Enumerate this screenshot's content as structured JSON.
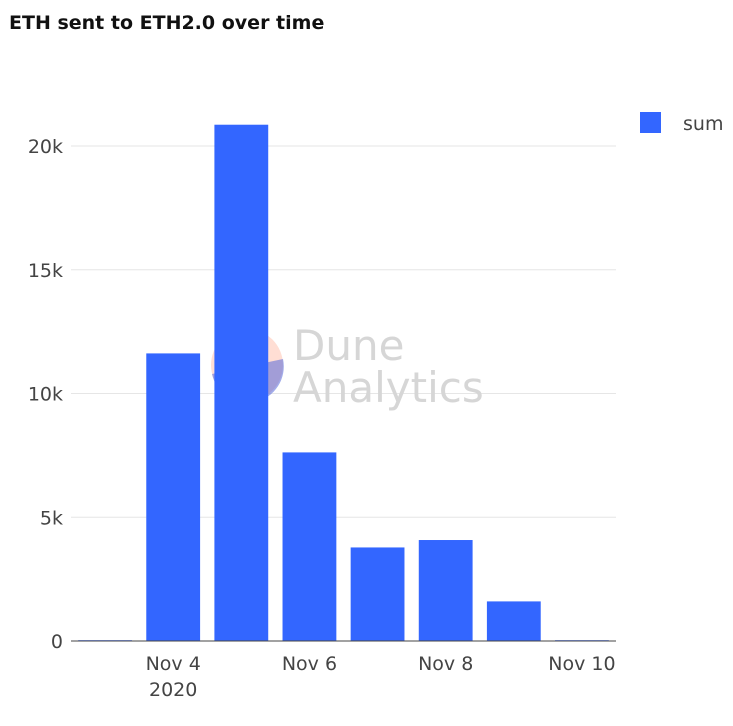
{
  "title": "ETH sent to ETH2.0 over time",
  "watermark": {
    "line1": "Dune",
    "line2": "Analytics"
  },
  "colors": {
    "bar": "#3366ff",
    "grid": "#e6e6e6",
    "axis": "#444444"
  },
  "chart_data": {
    "type": "bar",
    "title": "ETH sent to ETH2.0 over time",
    "x": [
      "2020-11-03",
      "2020-11-04",
      "2020-11-05",
      "2020-11-06",
      "2020-11-07",
      "2020-11-08",
      "2020-11-09",
      "2020-11-10"
    ],
    "series": [
      {
        "name": "sum",
        "values": [
          32,
          11620,
          20860,
          7620,
          3780,
          4080,
          1600,
          32
        ]
      }
    ],
    "ylim": [
      0,
      22500
    ],
    "yticks": [
      0,
      5000,
      10000,
      15000,
      20000
    ],
    "ytick_labels": [
      "0",
      "5k",
      "10k",
      "15k",
      "20k"
    ],
    "xticks": [
      {
        "x": "2020-11-04",
        "label": "Nov 4",
        "sublabel": "2020"
      },
      {
        "x": "2020-11-06",
        "label": "Nov 6"
      },
      {
        "x": "2020-11-08",
        "label": "Nov 8"
      },
      {
        "x": "2020-11-10",
        "label": "Nov 10"
      }
    ],
    "legend": {
      "position": "top-right",
      "entries": [
        "sum"
      ]
    },
    "grid": true
  }
}
